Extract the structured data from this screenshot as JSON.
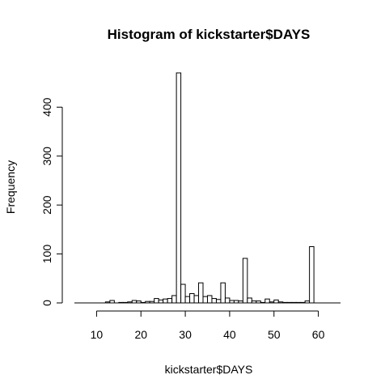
{
  "chart_data": {
    "type": "bar",
    "title": "Histogram of kickstarter$DAYS",
    "xlabel": "kickstarter$DAYS",
    "ylabel": "Frequency",
    "xlim": [
      5,
      65
    ],
    "ylim": [
      0,
      470
    ],
    "x_ticks": [
      10,
      20,
      30,
      40,
      50,
      60
    ],
    "y_ticks": [
      0,
      100,
      200,
      300,
      400
    ],
    "bin_width": 1,
    "bin_edges_start": 12,
    "values": [
      2,
      5,
      0,
      1,
      1,
      2,
      5,
      4,
      1,
      3,
      3,
      9,
      6,
      8,
      9,
      15,
      470,
      38,
      13,
      19,
      15,
      41,
      13,
      15,
      9,
      7,
      41,
      10,
      5,
      5,
      4,
      91,
      10,
      4,
      4,
      1,
      8,
      2,
      6,
      2,
      1,
      1,
      1,
      1,
      1,
      4,
      115
    ]
  }
}
